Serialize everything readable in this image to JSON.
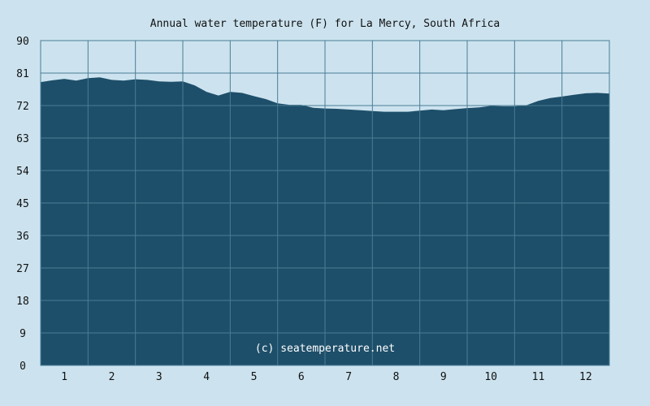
{
  "chart_data": {
    "type": "area",
    "title": "Annual water temperature (F) for La Mercy, South Africa",
    "credit": "(c) seatemperature.net",
    "xlabel": "",
    "ylabel": "",
    "x_ticks": [
      "1",
      "2",
      "3",
      "4",
      "5",
      "6",
      "7",
      "8",
      "9",
      "10",
      "11",
      "12"
    ],
    "y_ticks": [
      0,
      9,
      18,
      27,
      36,
      45,
      54,
      63,
      72,
      81,
      90
    ],
    "ylim": [
      0,
      90
    ],
    "xlim": [
      0.5,
      12.5
    ],
    "grid": true,
    "colors": {
      "fill": "#1e4f6a",
      "background": "#cce3ef",
      "grid": "#4a7c96"
    },
    "series": [
      {
        "x": [
          0.5,
          0.75,
          1.0,
          1.25,
          1.5,
          1.75,
          2.0,
          2.25,
          2.5,
          2.75,
          3.0,
          3.25,
          3.5,
          3.75,
          4.0,
          4.25,
          4.5,
          4.75,
          5.0,
          5.25,
          5.5,
          5.75,
          6.0,
          6.25,
          6.5,
          6.75,
          7.0,
          7.25,
          7.5,
          7.75,
          8.0,
          8.25,
          8.5,
          8.75,
          9.0,
          9.25,
          9.5,
          9.75,
          10.0,
          10.25,
          10.5,
          10.75,
          11.0,
          11.25,
          11.5,
          11.75,
          12.0,
          12.25,
          12.5
        ],
        "values": [
          78.5,
          79.0,
          79.4,
          78.9,
          79.6,
          79.8,
          79.1,
          78.9,
          79.3,
          79.1,
          78.7,
          78.6,
          78.7,
          77.6,
          75.8,
          74.8,
          75.8,
          75.5,
          74.6,
          73.8,
          72.6,
          72.2,
          72.2,
          71.4,
          71.2,
          71.1,
          70.9,
          70.7,
          70.5,
          70.3,
          70.3,
          70.3,
          70.6,
          70.9,
          70.7,
          71.0,
          71.3,
          71.5,
          71.9,
          71.8,
          71.8,
          72.1,
          73.3,
          74.1,
          74.5,
          75.0,
          75.4,
          75.5,
          75.3
        ]
      }
    ]
  }
}
